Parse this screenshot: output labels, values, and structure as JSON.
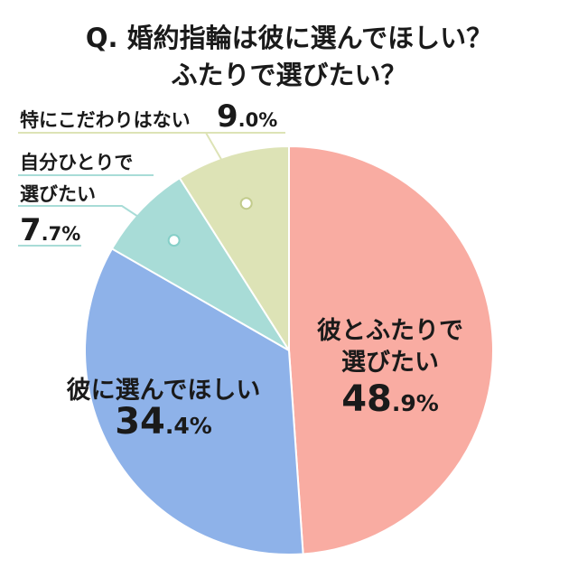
{
  "chart_data": {
    "type": "pie",
    "title_lines": [
      "Q. 婚約指輪は彼に選んでほしい？",
      "ふたりで選びたい？"
    ],
    "slices": [
      {
        "label_lines": [
          "彼とふたりで",
          "選びたい"
        ],
        "value": 48.9,
        "value_int": "48",
        "value_dec": ".9%",
        "color": "#f9aca2"
      },
      {
        "label_lines": [
          "彼に選んでほしい"
        ],
        "value": 34.4,
        "value_int": "34",
        "value_dec": ".4%",
        "color": "#8eb2e9"
      },
      {
        "label_lines": [
          "自分ひとりで",
          "選びたい"
        ],
        "value": 7.7,
        "value_int": "7",
        "value_dec": ".7%",
        "color": "#a8dcd7"
      },
      {
        "label_lines": [
          "特にこだわりはない"
        ],
        "value": 9.0,
        "value_int": "9",
        "value_dec": ".0%",
        "color": "#dde3b6"
      }
    ]
  }
}
